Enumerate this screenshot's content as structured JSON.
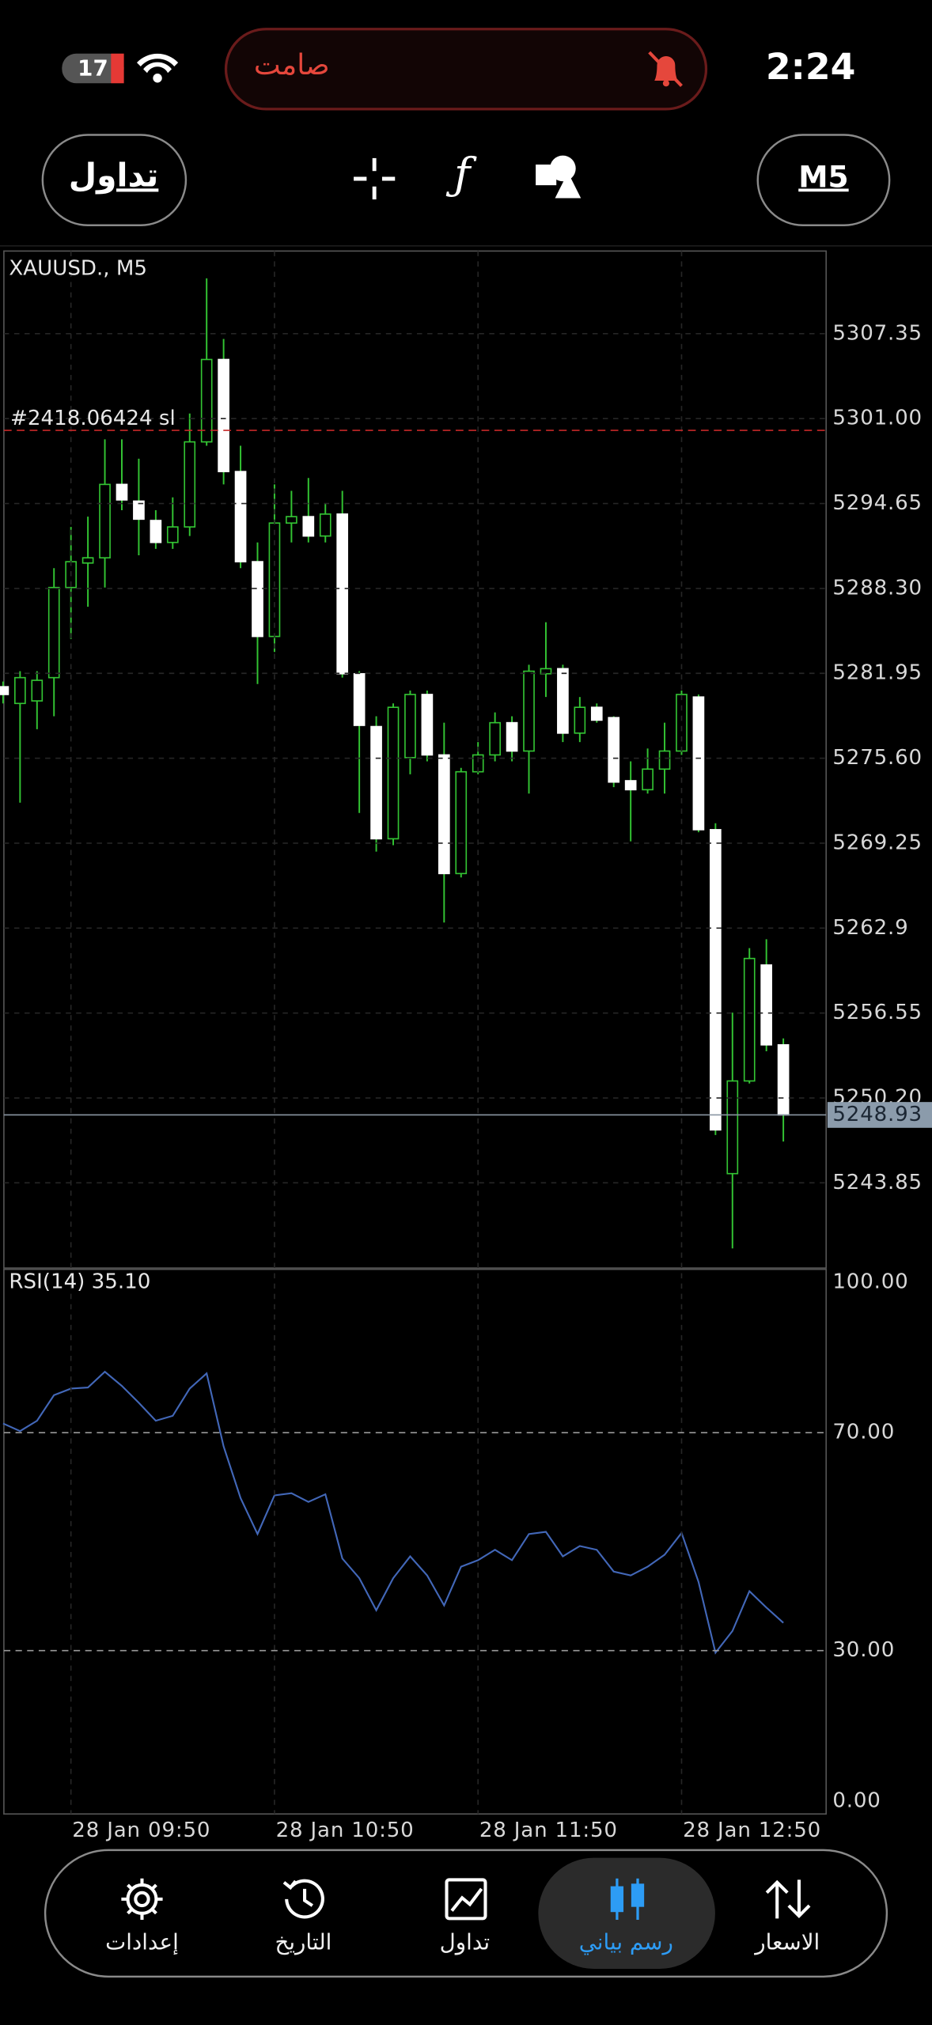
{
  "status_bar": {
    "battery": 17,
    "silent_label": "صامت",
    "time": "2:24"
  },
  "toolbar": {
    "trade_button": "تداول",
    "timeframe": "M5"
  },
  "chart_data": [
    {
      "type": "candlestick",
      "title": "XAUUSD., M5",
      "categories": [
        null,
        null,
        null,
        null,
        "28 Jan 09:50",
        null,
        null,
        null,
        null,
        null,
        null,
        null,
        null,
        null,
        null,
        null,
        "28 Jan 10:50",
        null,
        null,
        null,
        null,
        null,
        null,
        null,
        null,
        null,
        null,
        null,
        "28 Jan 11:50",
        null,
        null,
        null,
        null,
        null,
        null,
        null,
        null,
        null,
        null,
        null,
        "28 Jan 12:50",
        null,
        null,
        null,
        null,
        null,
        null
      ],
      "open": [
        5280.95,
        5279.7,
        5279.89,
        5281.63,
        5288.37,
        5290.2,
        5290.59,
        5296.08,
        5294.83,
        5293.38,
        5291.74,
        5292.9,
        5299.26,
        5305.42,
        5297.04,
        5290.3,
        5284.71,
        5293.19,
        5293.67,
        5292.22,
        5293.86,
        5281.92,
        5277.97,
        5269.58,
        5275.65,
        5280.37,
        5275.85,
        5266.98,
        5274.59,
        5275.85,
        5278.26,
        5276.14,
        5281.92,
        5282.3,
        5277.48,
        5279.41,
        5278.64,
        5273.92,
        5273.25,
        5274.79,
        5276.14,
        5280.18,
        5270.26,
        5244.54,
        5251.47,
        5260.14,
        5254.17
      ],
      "high": [
        5281.34,
        5282.11,
        5282.11,
        5289.82,
        5292.9,
        5293.67,
        5299.45,
        5299.45,
        5298.0,
        5294.15,
        5295.11,
        5301.38,
        5311.49,
        5306.96,
        5298.97,
        5291.74,
        5296.08,
        5295.6,
        5296.56,
        5294.63,
        5295.6,
        5282.11,
        5278.74,
        5279.7,
        5280.66,
        5280.66,
        5278.26,
        5274.88,
        5276.81,
        5279.03,
        5278.74,
        5282.59,
        5285.77,
        5282.59,
        5280.18,
        5279.7,
        5278.74,
        5275.37,
        5276.33,
        5278.26,
        5280.66,
        5280.37,
        5270.74,
        5256.58,
        5261.4,
        5262.07,
        5254.65
      ],
      "low": [
        5279.7,
        5272.28,
        5277.77,
        5278.74,
        5284.52,
        5286.93,
        5288.37,
        5294.15,
        5290.78,
        5291.26,
        5291.26,
        5292.22,
        5298.97,
        5296.08,
        5289.82,
        5281.15,
        5283.55,
        5291.74,
        5291.74,
        5291.74,
        5281.63,
        5271.51,
        5268.62,
        5269.1,
        5274.4,
        5275.37,
        5263.32,
        5266.69,
        5274.4,
        5275.37,
        5275.37,
        5272.96,
        5280.18,
        5276.81,
        5276.81,
        5278.26,
        5273.44,
        5269.39,
        5272.96,
        5272.96,
        5275.85,
        5270.07,
        5247.43,
        5238.95,
        5251.28,
        5253.69,
        5246.94
      ],
      "close": [
        5280.37,
        5281.63,
        5281.43,
        5288.37,
        5290.3,
        5290.59,
        5296.08,
        5294.92,
        5293.48,
        5291.74,
        5292.9,
        5299.26,
        5305.42,
        5297.04,
        5290.3,
        5284.71,
        5293.19,
        5293.67,
        5292.22,
        5293.86,
        5281.92,
        5278.06,
        5269.58,
        5279.41,
        5280.37,
        5275.85,
        5266.98,
        5274.59,
        5275.85,
        5278.26,
        5276.14,
        5282.11,
        5282.3,
        5277.48,
        5279.41,
        5278.45,
        5273.82,
        5273.25,
        5274.79,
        5276.14,
        5280.37,
        5270.26,
        5247.81,
        5251.47,
        5260.63,
        5254.17,
        5248.93
      ],
      "up_color": "#33c433",
      "down_color": "#ffffff",
      "ylim": [
        5237.48,
        5313.53
      ],
      "yticks": [
        5307.35,
        {
          "value": 5301.0,
          "label": "5301.00"
        },
        5294.65,
        {
          "value": 5288.3,
          "label": "5288.30"
        },
        5281.95,
        {
          "value": 5275.6,
          "label": "5275.60"
        },
        5269.25,
        5262.9,
        5256.55,
        {
          "value": 5250.2,
          "label": "5250.20"
        },
        5243.85
      ],
      "grid": true,
      "current_price": 5248.93,
      "sl_price": 5300.12,
      "sl_annotation": "#2418.06424 sl"
    },
    {
      "type": "line",
      "title": "RSI(14) 35.10",
      "color": "#4267b8",
      "values": [
        71.7,
        70.3,
        72.2,
        76.9,
        78.1,
        78.3,
        81.2,
        78.6,
        75.5,
        72.2,
        73.1,
        78.1,
        80.9,
        67.5,
        58.0,
        51.4,
        58.5,
        58.9,
        57.3,
        58.7,
        46.9,
        43.3,
        37.4,
        43.3,
        47.3,
        43.8,
        38.3,
        45.4,
        46.6,
        48.5,
        46.6,
        51.4,
        51.8,
        47.3,
        49.2,
        48.5,
        44.5,
        43.8,
        45.4,
        47.6,
        51.6,
        42.6,
        29.6,
        33.6,
        40.9,
        37.9,
        35.1
      ],
      "ylim": [
        0,
        100
      ],
      "yticks": [
        {
          "value": 0,
          "label": "0.00"
        },
        {
          "value": 30,
          "label": "30.00"
        },
        {
          "value": 70,
          "label": "70.00"
        },
        {
          "value": 100,
          "label": "100.00"
        }
      ],
      "levels": [
        30,
        70
      ]
    }
  ],
  "nav": {
    "items": [
      "إعدادات",
      "التاريخ",
      "تداول",
      "رسم بياني",
      "الاسعار"
    ],
    "active": 3
  }
}
